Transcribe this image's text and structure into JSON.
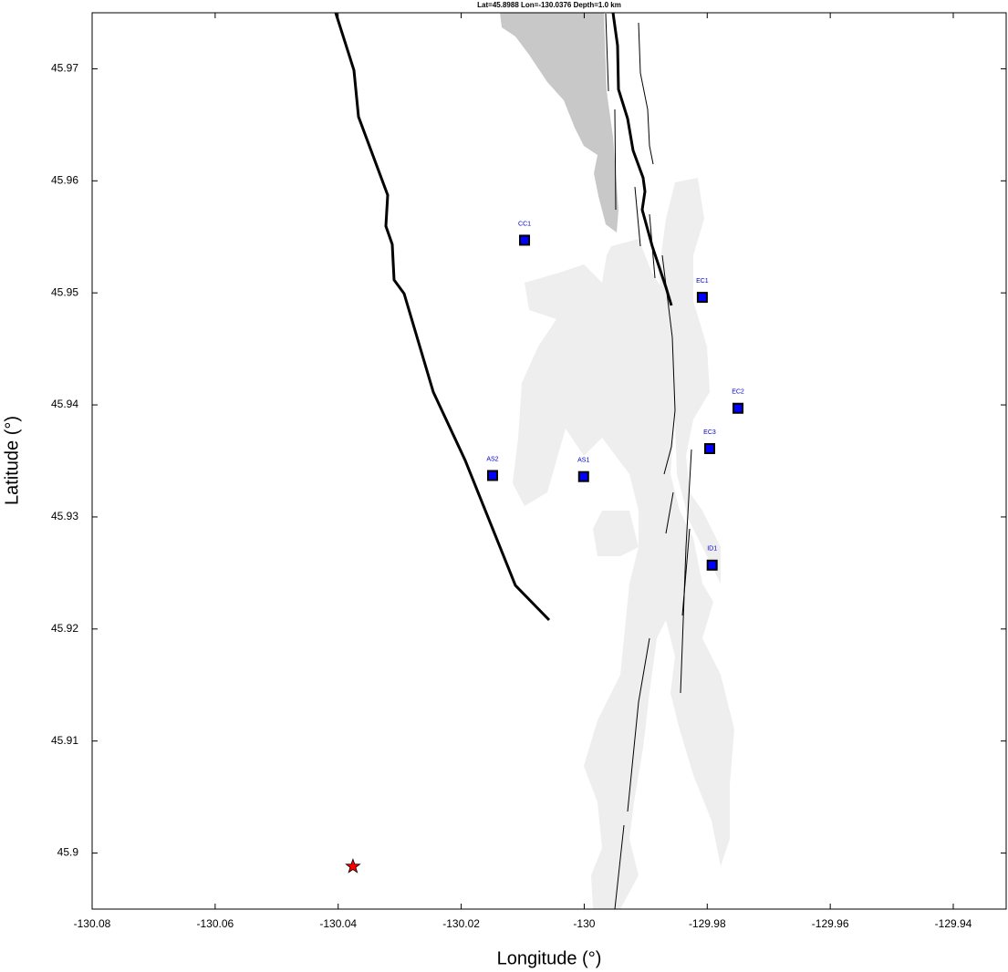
{
  "chart_data": {
    "type": "map",
    "title": "Lat=45.8988  Lon=-130.0376  Depth=1.0 km",
    "x_label": "Longitude (°)",
    "y_label": "Latitude (°)",
    "xlim": [
      -130.08,
      -129.9314
    ],
    "ylim": [
      45.895,
      45.975
    ],
    "xticks": [
      -130.08,
      -130.06,
      -130.04,
      -130.02,
      -130,
      -129.98,
      -129.96,
      -129.94
    ],
    "yticks": [
      45.9,
      45.91,
      45.92,
      45.93,
      45.94,
      45.95,
      45.96,
      45.97
    ],
    "stations": {
      "color": "#0000ff",
      "names": [
        "CC1",
        "EC1",
        "EC2",
        "EC3",
        "AS2",
        "AS1",
        "ID1"
      ],
      "x": [
        -130.0097,
        -129.9808,
        -129.975,
        -129.9796,
        -130.0149,
        -130.0001,
        -129.9792
      ],
      "values": [
        45.9547,
        45.9496,
        45.9397,
        45.9361,
        45.9337,
        45.9336,
        45.9257
      ]
    },
    "epicenter": {
      "color": "#ff0000",
      "x": -130.0376,
      "y": 45.8988
    }
  }
}
